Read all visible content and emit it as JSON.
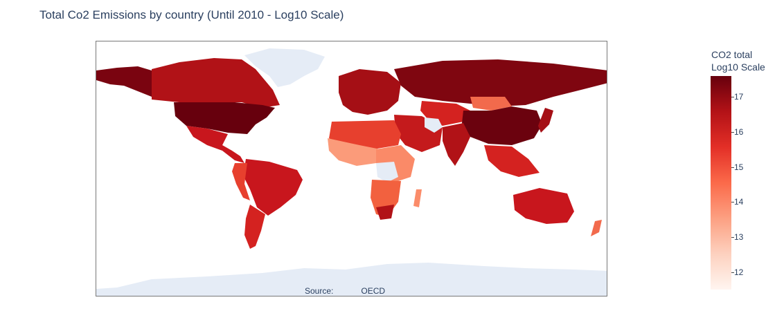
{
  "title": "Total Co2 Emissions by country (Until 2010 - Log10 Scale)",
  "source": {
    "label": "Source:",
    "value": "OECD"
  },
  "colorbar": {
    "title_line1": "CO2 total",
    "title_line2": "Log10 Scale",
    "ticks": [
      "12",
      "13",
      "14",
      "15",
      "16",
      "17"
    ],
    "range": [
      11.5,
      17.6
    ],
    "colorscale": [
      "#fff5f0",
      "#fdd1bf",
      "#fca082",
      "#fb6a4a",
      "#e32f27",
      "#b31217",
      "#67000d"
    ]
  },
  "map": {
    "no_data_color": "#e5ecf6",
    "land_default_color": "#c8161d"
  },
  "chart_data": {
    "type": "choropleth",
    "title": "Total Co2 Emissions by country (Until 2010 - Log10 Scale)",
    "colorbar_title": "CO2 total Log10 Scale",
    "zrange": [
      11.5,
      17.6
    ],
    "locations": [
      {
        "country": "United States",
        "value": 17.5
      },
      {
        "country": "China",
        "value": 17.2
      },
      {
        "country": "Russia",
        "value": 17.0
      },
      {
        "country": "Canada",
        "value": 16.5
      },
      {
        "country": "India",
        "value": 16.6
      },
      {
        "country": "Australia",
        "value": 16.2
      },
      {
        "country": "Brazil",
        "value": 16.2
      },
      {
        "country": "Mexico",
        "value": 16.3
      },
      {
        "country": "Argentina",
        "value": 15.8
      },
      {
        "country": "Mongolia",
        "value": 14.6
      },
      {
        "country": "South Africa",
        "value": 16.3
      },
      {
        "country": "Kazakhstan",
        "value": 16.1
      }
    ]
  }
}
